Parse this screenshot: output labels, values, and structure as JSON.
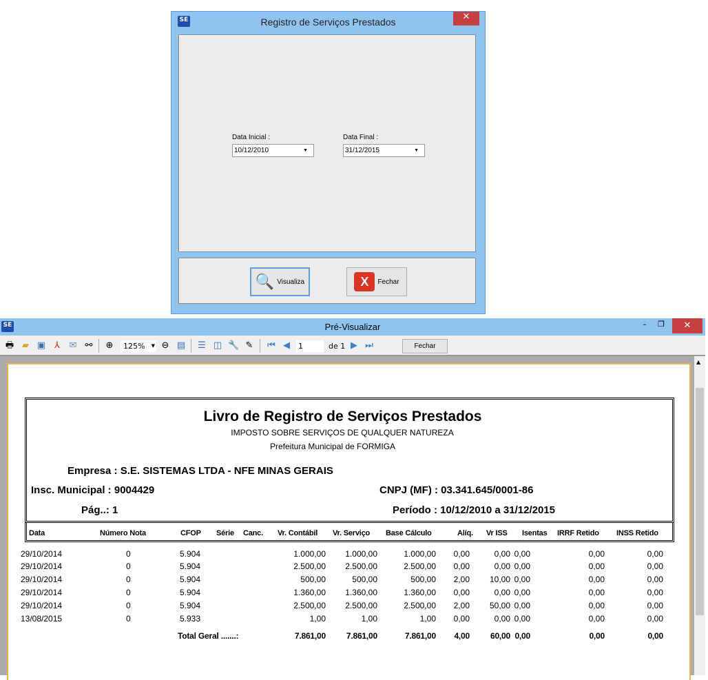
{
  "dialog": {
    "title": "Registro de Serviços Prestados",
    "logo": "SE",
    "close": "✕",
    "data_inicial_label": "Data Inicial :",
    "data_inicial": "10/12/2010",
    "data_final_label": "Data Final :",
    "data_final": "31/12/2015",
    "visualiza": "Visualiza",
    "fechar": "Fechar"
  },
  "preview": {
    "title": "Pré-Visualizar",
    "zoom": "125%",
    "page": "1",
    "of": "de 1",
    "fechar": "Fechar",
    "icons": [
      "print-icon",
      "open-icon",
      "save-icon",
      "pdf-icon",
      "email-icon",
      "find-icon",
      "zoom-in-icon",
      "zoom-out-icon",
      "page-width-icon",
      "outline-icon",
      "thumbnails-icon",
      "page-setup-icon",
      "edit-icon",
      "first-page-icon",
      "prev-page-icon",
      "next-page-icon",
      "last-page-icon"
    ]
  },
  "report": {
    "title": "Livro de Registro de Serviços Prestados",
    "subtitle": "IMPOSTO SOBRE SERVIÇOS DE QUALQUER NATUREZA",
    "prefeitura": "Prefeitura Municipal de FORMIGA",
    "empresa": "Empresa : S.E. SISTEMAS LTDA - NFE MINAS GERAIS",
    "insc": "Insc. Municipal : 9004429",
    "cnpj": "CNPJ (MF) : 03.341.645/0001-86",
    "pag": "Pág..: 1",
    "periodo": "Período : 10/12/2010 a 31/12/2015",
    "columns": [
      "Data",
      "Número Nota",
      "CFOP",
      "Série",
      "Canc.",
      "Vr. Contábil",
      "Vr. Serviço",
      "Base Cálculo",
      "Alíq.",
      "Vr ISS",
      "Isentas",
      "IRRF Retido",
      "INSS Retido"
    ],
    "rows": [
      [
        "29/10/2014",
        "0",
        "5.904",
        "1.000,00",
        "1.000,00",
        "1.000,00",
        "0,00",
        "0,00",
        "0,00",
        "0,00",
        "0,00"
      ],
      [
        "29/10/2014",
        "0",
        "5.904",
        "2.500,00",
        "2.500,00",
        "2.500,00",
        "0,00",
        "0,00",
        "0,00",
        "0,00",
        "0,00"
      ],
      [
        "29/10/2014",
        "0",
        "5.904",
        "500,00",
        "500,00",
        "500,00",
        "2,00",
        "10,00",
        "0,00",
        "0,00",
        "0,00"
      ],
      [
        "29/10/2014",
        "0",
        "5.904",
        "1.360,00",
        "1.360,00",
        "1.360,00",
        "0,00",
        "0,00",
        "0,00",
        "0,00",
        "0,00"
      ],
      [
        "29/10/2014",
        "0",
        "5.904",
        "2.500,00",
        "2.500,00",
        "2.500,00",
        "2,00",
        "50,00",
        "0,00",
        "0,00",
        "0,00"
      ],
      [
        "13/08/2015",
        "0",
        "5.933",
        "1,00",
        "1,00",
        "1,00",
        "0,00",
        "0,00",
        "0,00",
        "0,00",
        "0,00"
      ]
    ],
    "total_label": "Total Geral .......:",
    "totals": [
      "7.861,00",
      "7.861,00",
      "7.861,00",
      "4,00",
      "60,00",
      "0,00",
      "0,00",
      "0,00"
    ]
  }
}
